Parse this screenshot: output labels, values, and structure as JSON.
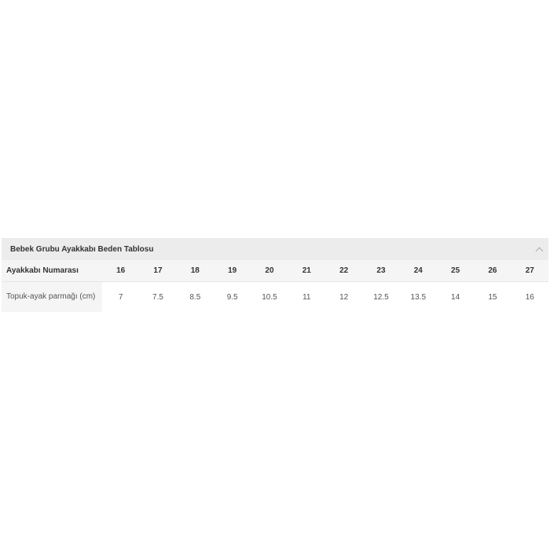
{
  "title": "Bebek Grubu Ayakkabı Beden Tablosu",
  "header_label": "Ayakkabı Numarası",
  "row_label": "Topuk-ayak parmağı (cm)",
  "sizes": [
    "16",
    "17",
    "18",
    "19",
    "20",
    "21",
    "22",
    "23",
    "24",
    "25",
    "26",
    "27"
  ],
  "lengths": [
    "7",
    "7.5",
    "8.5",
    "9.5",
    "10.5",
    "11",
    "12",
    "12.5",
    "13.5",
    "14",
    "15",
    "16"
  ]
}
